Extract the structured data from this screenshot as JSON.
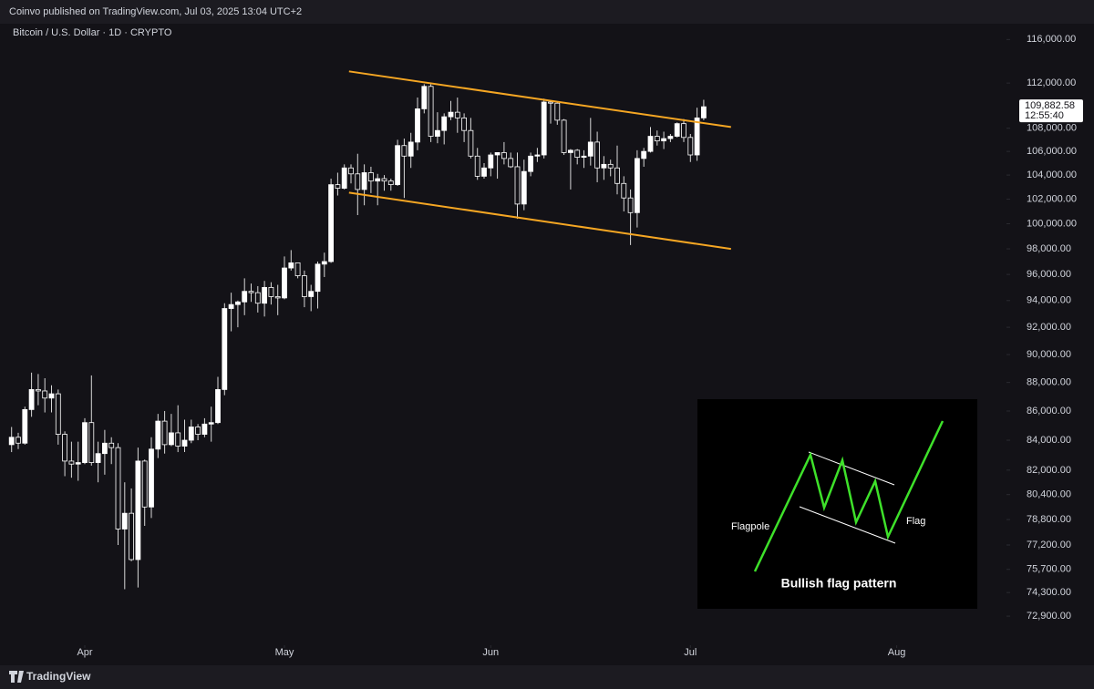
{
  "header": {
    "publisher": "Coinvo published on TradingView.com, Jul 03, 2025 13:04 UTC+2",
    "footer": "TradingView"
  },
  "chart_data": {
    "type": "candlestick",
    "title": "Bitcoin / U.S. Dollar · 1D · CRYPTO",
    "categories": [
      null,
      null,
      null,
      null,
      null,
      null,
      null,
      null,
      null,
      null,
      null,
      "Apr",
      null,
      null,
      null,
      null,
      null,
      null,
      null,
      null,
      null,
      null,
      null,
      null,
      null,
      null,
      null,
      null,
      null,
      null,
      null,
      null,
      null,
      null,
      null,
      null,
      null,
      null,
      null,
      null,
      null,
      "May",
      null,
      null,
      null,
      null,
      null,
      null,
      null,
      null,
      null,
      null,
      null,
      null,
      null,
      null,
      null,
      null,
      null,
      null,
      null,
      null,
      null,
      null,
      null,
      null,
      null,
      null,
      null,
      null,
      null,
      null,
      "Jun",
      null,
      null,
      null,
      null,
      null,
      null,
      null,
      null,
      null,
      null,
      null,
      null,
      null,
      null,
      null,
      null,
      null,
      null,
      null,
      null,
      null,
      null,
      null,
      null,
      null,
      null,
      null,
      null,
      null,
      "Jul",
      null,
      null,
      null,
      null,
      null,
      null,
      null,
      null,
      null,
      null,
      null,
      null,
      null,
      null,
      null,
      null,
      null,
      null,
      null,
      null,
      null,
      null,
      null,
      null,
      null,
      null,
      null,
      null,
      null,
      null,
      "Aug",
      null,
      null,
      null,
      null,
      null,
      null,
      null,
      null,
      null,
      null,
      null,
      null,
      null,
      null,
      null,
      null
    ],
    "open": [
      83700,
      84200,
      83800,
      86100,
      87500,
      87400,
      86900,
      87200,
      84400,
      82600,
      82400,
      82500,
      85200,
      82500,
      83100,
      83800,
      83500,
      78200,
      79200,
      76300,
      82600,
      79600,
      83400,
      85300,
      83700,
      84500,
      83600,
      84000,
      84900,
      84400,
      85100,
      85200,
      87500,
      93400,
      93700,
      93900,
      94700,
      94600,
      93800,
      95000,
      94300,
      94200,
      96500,
      96900,
      95900,
      94300,
      94700,
      96800,
      97000,
      103200,
      102900,
      104600,
      104100,
      102800,
      104200,
      103500,
      103700,
      103500,
      103200,
      106500,
      105600,
      106800,
      109700,
      111700,
      107300,
      107800,
      109000,
      109400,
      108900,
      107800,
      105600,
      103900,
      104600,
      105700,
      105900,
      105400,
      104700,
      101600,
      104300,
      105600,
      105700,
      110300,
      110200,
      108700,
      105900,
      106100,
      105500,
      105600,
      106800,
      104600,
      104900,
      104600,
      103300,
      102100,
      100900,
      105400,
      106000,
      107300,
      106900,
      107100,
      107300,
      108400,
      107200,
      105700,
      108900,
      null,
      null,
      null,
      null,
      null,
      null,
      null,
      null,
      null,
      null,
      null,
      null,
      null,
      null,
      null,
      null,
      null,
      null,
      null,
      null,
      null,
      null,
      null,
      null,
      null,
      null,
      null,
      null,
      null,
      null,
      null,
      null,
      null,
      null,
      null,
      null,
      null,
      null,
      null,
      null,
      null,
      null,
      null,
      null,
      null
    ],
    "high": [
      84900,
      84500,
      86300,
      88700,
      88600,
      88300,
      87800,
      87500,
      84600,
      83900,
      83900,
      85500,
      88500,
      83900,
      84700,
      84200,
      83800,
      81200,
      80800,
      83500,
      82700,
      84200,
      85800,
      86000,
      85800,
      86400,
      85400,
      85400,
      85100,
      85500,
      86300,
      88400,
      93800,
      94600,
      94000,
      95700,
      95300,
      95100,
      95500,
      95400,
      95200,
      97400,
      97900,
      96900,
      96300,
      95200,
      97000,
      97700,
      103700,
      104200,
      104900,
      104900,
      105800,
      104900,
      104700,
      104100,
      104000,
      103700,
      107000,
      107100,
      107600,
      110700,
      111900,
      111900,
      109400,
      109300,
      110400,
      110700,
      109300,
      108900,
      106300,
      105000,
      105900,
      105900,
      106800,
      105900,
      105900,
      105300,
      105900,
      106300,
      110600,
      110400,
      110300,
      108800,
      106200,
      106200,
      106100,
      108900,
      107700,
      105600,
      105300,
      106500,
      103900,
      102800,
      106100,
      106300,
      108100,
      107800,
      107700,
      107500,
      108500,
      108800,
      107500,
      109800,
      110500,
      null,
      null,
      null,
      null,
      null,
      null,
      null,
      null,
      null,
      null,
      null,
      null,
      null,
      null,
      null,
      null,
      null,
      null,
      null,
      null,
      null,
      null,
      null,
      null,
      null,
      null,
      null,
      null,
      null,
      null,
      null,
      null,
      null,
      null,
      null,
      null,
      null,
      null,
      null,
      null,
      null,
      null,
      null,
      null,
      null
    ],
    "low": [
      83200,
      83400,
      83700,
      85600,
      86400,
      85900,
      85900,
      83700,
      81600,
      81500,
      81300,
      82400,
      82300,
      81200,
      81700,
      82400,
      77200,
      74500,
      76200,
      74600,
      78400,
      78900,
      82800,
      83100,
      83600,
      83200,
      83200,
      83800,
      84000,
      84200,
      83900,
      85100,
      87100,
      91700,
      92000,
      92900,
      93900,
      93100,
      92800,
      93700,
      92900,
      94100,
      96300,
      95700,
      93500,
      93200,
      93400,
      95800,
      96900,
      102300,
      102800,
      103300,
      100700,
      101500,
      102500,
      101500,
      102700,
      102700,
      103100,
      102100,
      104600,
      106100,
      109300,
      106800,
      106700,
      106600,
      108700,
      107600,
      106800,
      105400,
      103600,
      103700,
      103900,
      103700,
      104900,
      104600,
      100400,
      101100,
      103900,
      105100,
      105400,
      108400,
      108300,
      105700,
      102800,
      104900,
      104600,
      104800,
      103400,
      103600,
      103900,
      102400,
      101000,
      98300,
      99700,
      104700,
      105900,
      106500,
      106200,
      106800,
      107200,
      106800,
      105100,
      105200,
      108700,
      null,
      null,
      null,
      null,
      null,
      null,
      null,
      null,
      null,
      null,
      null,
      null,
      null,
      null,
      null,
      null,
      null,
      null,
      null,
      null,
      null,
      null,
      null,
      null,
      null,
      null,
      null,
      null,
      null,
      null,
      null,
      null,
      null,
      null,
      null,
      null,
      null,
      null,
      null,
      null,
      null,
      null,
      null,
      null,
      null
    ],
    "close": [
      84200,
      83800,
      86100,
      87500,
      87400,
      86900,
      87200,
      84400,
      82600,
      82400,
      82500,
      85200,
      82500,
      83100,
      83800,
      83500,
      78200,
      79200,
      76300,
      82600,
      79600,
      83400,
      85300,
      83700,
      84500,
      83600,
      84000,
      84900,
      84400,
      85100,
      85200,
      87500,
      93400,
      93700,
      93900,
      94700,
      94600,
      93800,
      95000,
      94300,
      94200,
      96500,
      96900,
      95900,
      94300,
      94700,
      96800,
      97000,
      103200,
      102900,
      104600,
      104100,
      102800,
      104200,
      103500,
      103700,
      103500,
      103200,
      106500,
      105600,
      106800,
      109700,
      111700,
      107300,
      107800,
      109000,
      109400,
      108900,
      107800,
      105600,
      103900,
      104600,
      105700,
      105900,
      105400,
      104700,
      101600,
      104300,
      105600,
      105700,
      110300,
      110200,
      108700,
      105900,
      106100,
      105500,
      105600,
      106800,
      104600,
      104900,
      104600,
      103300,
      102100,
      100900,
      105400,
      106000,
      107300,
      106900,
      107100,
      107300,
      108400,
      107200,
      105700,
      108900,
      109882.58,
      null,
      null,
      null,
      null,
      null,
      null,
      null,
      null,
      null,
      null,
      null,
      null,
      null,
      null,
      null,
      null,
      null,
      null,
      null,
      null,
      null,
      null,
      null,
      null,
      null,
      null,
      null,
      null,
      null,
      null,
      null,
      null,
      null,
      null,
      null,
      null,
      null,
      null,
      null,
      null,
      null,
      null,
      null,
      null,
      null
    ],
    "up_color": "#ffffff",
    "down_color": "#131217",
    "wick_color": "#d8d8d8",
    "last_price": {
      "value": 109882.58,
      "label": "109,882.58",
      "countdown": "12:55:40"
    },
    "trendlines": [
      {
        "color": "#f5a623",
        "start": [
          50.7,
          113060
        ],
        "end": [
          108.1,
          108100
        ]
      },
      {
        "color": "#f5a623",
        "start": [
          50.7,
          102540
        ],
        "end": [
          108.1,
          97990
        ]
      }
    ],
    "log_scale": true,
    "grid": false,
    "ylim": [
      72000,
      117400
    ],
    "yticks": [
      {
        "value": 116000,
        "label": "116,000.00"
      },
      {
        "value": 112000,
        "label": "112,000.00"
      },
      {
        "value": 108000,
        "label": "108,000.00"
      },
      {
        "value": 106000,
        "label": "106,000.00"
      },
      {
        "value": 104000,
        "label": "104,000.00"
      },
      {
        "value": 102000,
        "label": "102,000.00"
      },
      {
        "value": 100000,
        "label": "100,000.00"
      },
      {
        "value": 98000,
        "label": "98,000.00"
      },
      {
        "value": 96000,
        "label": "96,000.00"
      },
      {
        "value": 94000,
        "label": "94,000.00"
      },
      {
        "value": 92000,
        "label": "92,000.00"
      },
      {
        "value": 90000,
        "label": "90,000.00"
      },
      {
        "value": 88000,
        "label": "88,000.00"
      },
      {
        "value": 86000,
        "label": "86,000.00"
      },
      {
        "value": 84000,
        "label": "84,000.00"
      },
      {
        "value": 82000,
        "label": "82,000.00"
      },
      {
        "value": 80400,
        "label": "80,400.00"
      },
      {
        "value": 78800,
        "label": "78,800.00"
      },
      {
        "value": 77200,
        "label": "77,200.00"
      },
      {
        "value": 75700,
        "label": "75,700.00"
      },
      {
        "value": 74300,
        "label": "74,300.00"
      },
      {
        "value": 72900,
        "label": "72,900.00"
      }
    ]
  },
  "inset": {
    "title": "Bullish flag pattern",
    "left_label": "Flagpole",
    "right_label": "Flag"
  }
}
